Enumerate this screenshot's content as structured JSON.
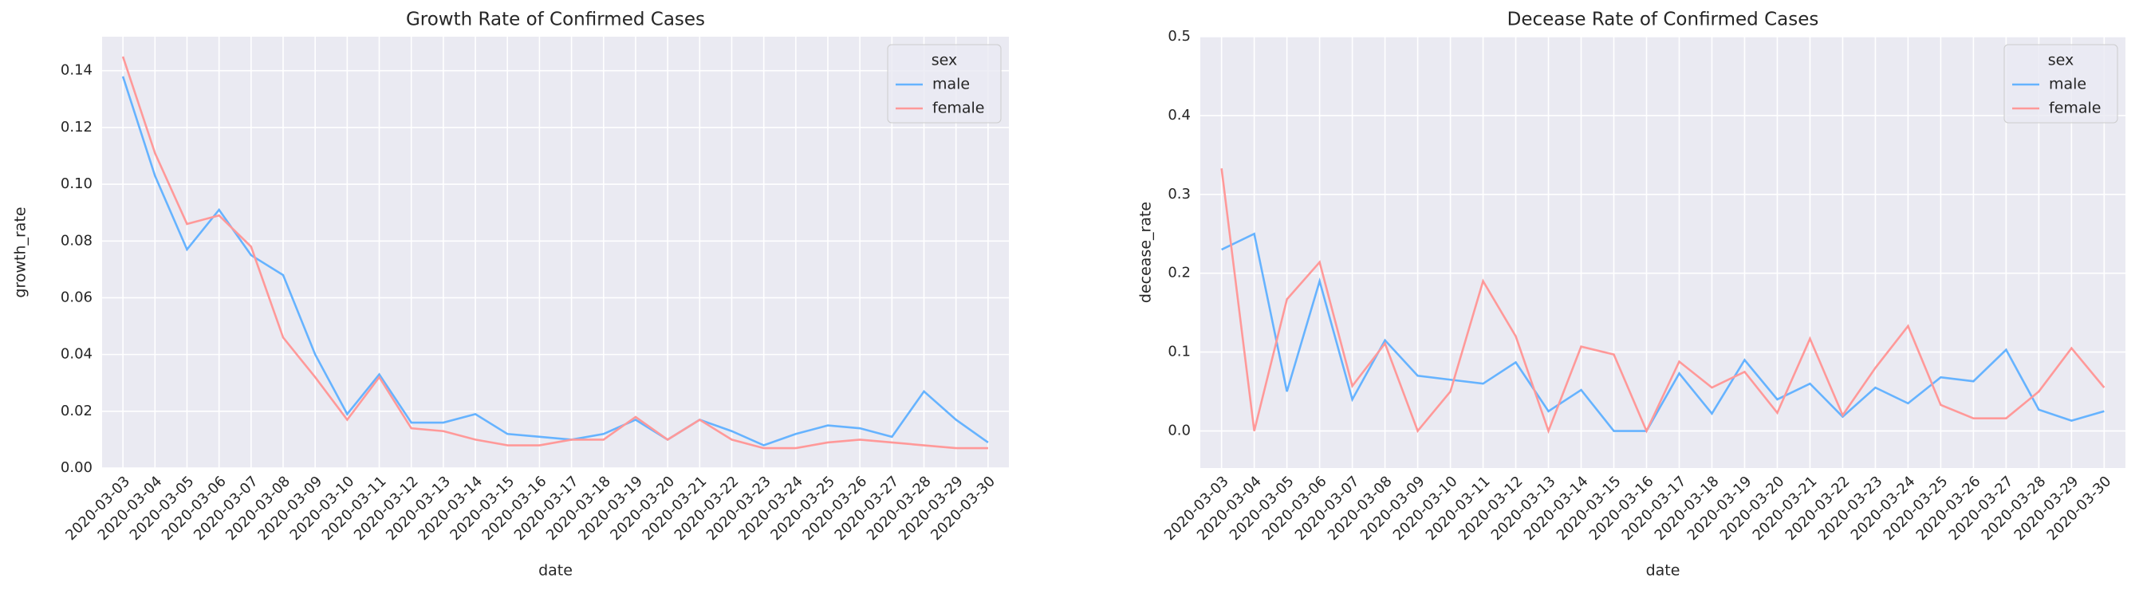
{
  "chart_data": [
    {
      "type": "line",
      "title": "Growth Rate of Confirmed Cases",
      "xlabel": "date",
      "ylabel": "growth_rate",
      "categories": [
        "2020-03-03",
        "2020-03-04",
        "2020-03-05",
        "2020-03-06",
        "2020-03-07",
        "2020-03-08",
        "2020-03-09",
        "2020-03-10",
        "2020-03-11",
        "2020-03-12",
        "2020-03-13",
        "2020-03-14",
        "2020-03-15",
        "2020-03-16",
        "2020-03-17",
        "2020-03-18",
        "2020-03-19",
        "2020-03-20",
        "2020-03-21",
        "2020-03-22",
        "2020-03-23",
        "2020-03-24",
        "2020-03-25",
        "2020-03-26",
        "2020-03-27",
        "2020-03-28",
        "2020-03-29",
        "2020-03-30"
      ],
      "series": [
        {
          "name": "male",
          "color": "#66b3ff",
          "values": [
            0.138,
            0.103,
            0.077,
            0.091,
            0.075,
            0.068,
            0.04,
            0.019,
            0.033,
            0.016,
            0.016,
            0.019,
            0.012,
            0.011,
            0.01,
            0.012,
            0.017,
            0.01,
            0.017,
            0.013,
            0.008,
            0.012,
            0.015,
            0.014,
            0.011,
            0.027,
            0.017,
            0.009
          ]
        },
        {
          "name": "female",
          "color": "#ff9999",
          "values": [
            0.145,
            0.111,
            0.086,
            0.089,
            0.078,
            0.046,
            0.032,
            0.017,
            0.032,
            0.014,
            0.013,
            0.01,
            0.008,
            0.008,
            0.01,
            0.01,
            0.018,
            0.01,
            0.017,
            0.01,
            0.007,
            0.007,
            0.009,
            0.01,
            0.009,
            0.008,
            0.007,
            0.007
          ]
        }
      ],
      "ylim": [
        0,
        0.152
      ],
      "yticks": [
        {
          "value": 0,
          "label": "0.00"
        },
        {
          "value": 0.02,
          "label": "0.02"
        },
        {
          "value": 0.04,
          "label": "0.04"
        },
        {
          "value": 0.06,
          "label": "0.06"
        },
        {
          "value": 0.08,
          "label": "0.08"
        },
        {
          "value": 0.1,
          "label": "0.10"
        },
        {
          "value": 0.12,
          "label": "0.12"
        },
        {
          "value": 0.14,
          "label": "0.14"
        }
      ],
      "grid": true,
      "legend_title": "sex",
      "legend": "upper right"
    },
    {
      "type": "line",
      "title": "Decease Rate of Confirmed Cases",
      "xlabel": "date",
      "ylabel": "decease_rate",
      "categories": [
        "2020-03-03",
        "2020-03-04",
        "2020-03-05",
        "2020-03-06",
        "2020-03-07",
        "2020-03-08",
        "2020-03-09",
        "2020-03-10",
        "2020-03-11",
        "2020-03-12",
        "2020-03-13",
        "2020-03-14",
        "2020-03-15",
        "2020-03-16",
        "2020-03-17",
        "2020-03-18",
        "2020-03-19",
        "2020-03-20",
        "2020-03-21",
        "2020-03-22",
        "2020-03-23",
        "2020-03-24",
        "2020-03-25",
        "2020-03-26",
        "2020-03-27",
        "2020-03-28",
        "2020-03-29",
        "2020-03-30"
      ],
      "series": [
        {
          "name": "male",
          "color": "#66b3ff",
          "values": [
            0.23,
            0.25,
            0.05,
            0.19,
            0.04,
            0.115,
            0.07,
            0.065,
            0.06,
            0.087,
            0.025,
            0.052,
            0.0,
            0.0,
            0.073,
            0.022,
            0.09,
            0.04,
            0.06,
            0.018,
            0.055,
            0.035,
            0.068,
            0.063,
            0.103,
            0.027,
            0.013,
            0.025
          ]
        },
        {
          "name": "female",
          "color": "#ff9999",
          "values": [
            0.333,
            0.0,
            0.167,
            0.214,
            0.057,
            0.111,
            0.0,
            0.05,
            0.19,
            0.12,
            0.0,
            0.107,
            0.097,
            0.0,
            0.088,
            0.055,
            0.075,
            0.023,
            0.117,
            0.02,
            0.08,
            0.133,
            0.033,
            0.016,
            0.016,
            0.05,
            0.105,
            0.055
          ]
        }
      ],
      "ylim": [
        -0.047,
        0.5
      ],
      "yticks": [
        {
          "value": 0,
          "label": "0.0"
        },
        0.1,
        0.2,
        0.3,
        0.4,
        0.5
      ],
      "grid": true,
      "legend_title": "sex",
      "legend": "upper right"
    }
  ]
}
